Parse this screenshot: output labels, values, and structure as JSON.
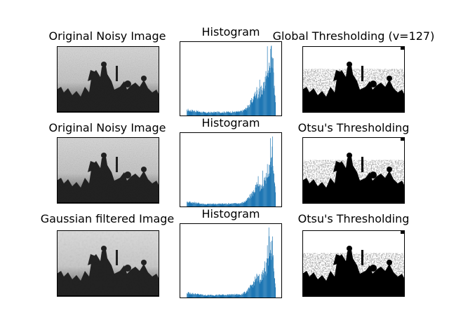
{
  "figure": {
    "rows": [
      {
        "image_title": "Original Noisy Image",
        "hist_title": "Histogram",
        "result_title": "Global Thresholding (v=127)"
      },
      {
        "image_title": "Original Noisy Image",
        "hist_title": "Histogram",
        "result_title": "Otsu's Thresholding"
      },
      {
        "image_title": "Gaussian filtered Image",
        "hist_title": "Histogram",
        "result_title": "Otsu's Thresholding"
      }
    ]
  },
  "chart_data": [
    {
      "type": "image",
      "title": "Original Noisy Image",
      "colormap": "gray"
    },
    {
      "type": "bar",
      "title": "Histogram",
      "color": "#1f77b4",
      "x_range": [
        0,
        256
      ],
      "bins": 256,
      "shape": "low plateau across mid-tones rising sharply into a tall peak near bright values, then dropping to zero",
      "ticks_visible": false
    },
    {
      "type": "image",
      "title": "Global Thresholding (v=127)",
      "colormap": "binary"
    },
    {
      "type": "image",
      "title": "Original Noisy Image",
      "colormap": "gray"
    },
    {
      "type": "bar",
      "title": "Histogram",
      "color": "#1f77b4",
      "x_range": [
        0,
        256
      ],
      "bins": 256,
      "ticks_visible": false
    },
    {
      "type": "image",
      "title": "Otsu's Thresholding",
      "colormap": "binary"
    },
    {
      "type": "image",
      "title": "Gaussian filtered Image",
      "colormap": "gray"
    },
    {
      "type": "bar",
      "title": "Histogram",
      "color": "#1f77b4",
      "x_range": [
        0,
        256
      ],
      "bins": 256,
      "ticks_visible": false
    },
    {
      "type": "image",
      "title": "Otsu's Thresholding",
      "colormap": "binary"
    }
  ]
}
